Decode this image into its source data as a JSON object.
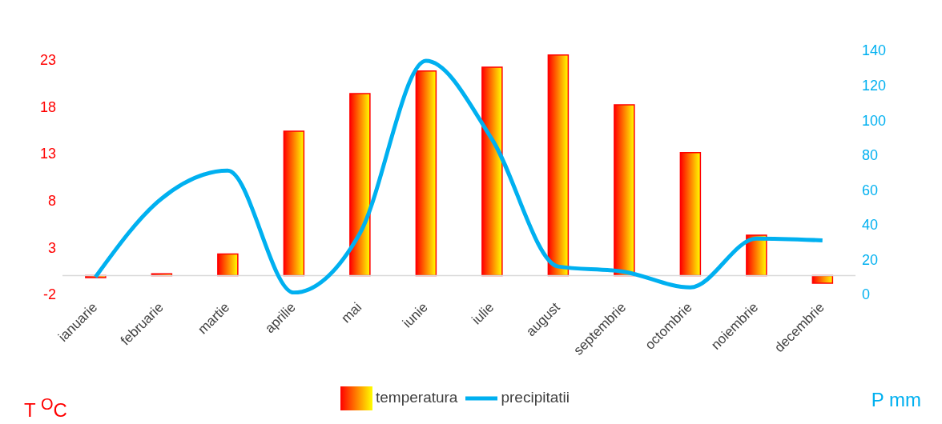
{
  "chart_data": {
    "type": "bar",
    "categories": [
      "ianuarie",
      "februarie",
      "martie",
      "aprilie",
      "mai",
      "iunie",
      "iulie",
      "august",
      "septembrie",
      "octombrie",
      "noiembrie",
      "decembrie"
    ],
    "series": [
      {
        "name": "temperatura",
        "color": "#ff0000",
        "values": [
          -0.2,
          0.2,
          2.3,
          15.4,
          19.4,
          21.8,
          22.2,
          23.5,
          18.2,
          13.1,
          4.3,
          -0.8
        ]
      },
      {
        "name": "precipitatii",
        "type": "line",
        "axis": "y2",
        "color": "#00b0f0",
        "values": [
          10,
          55,
          71,
          1,
          35,
          134,
          89,
          16,
          13,
          4,
          32,
          31
        ]
      }
    ],
    "ylabel": "T $^{O}$C",
    "y2label": "P mm",
    "ylim": [
      -2,
      24
    ],
    "yticks": [
      -2,
      3,
      8,
      13,
      18,
      23
    ],
    "y2lim": [
      0,
      140
    ],
    "y2ticks": [
      0,
      20,
      40,
      60,
      80,
      100,
      120,
      140
    ],
    "legend": "bottom",
    "marker": "none",
    "line_style": "solid"
  }
}
